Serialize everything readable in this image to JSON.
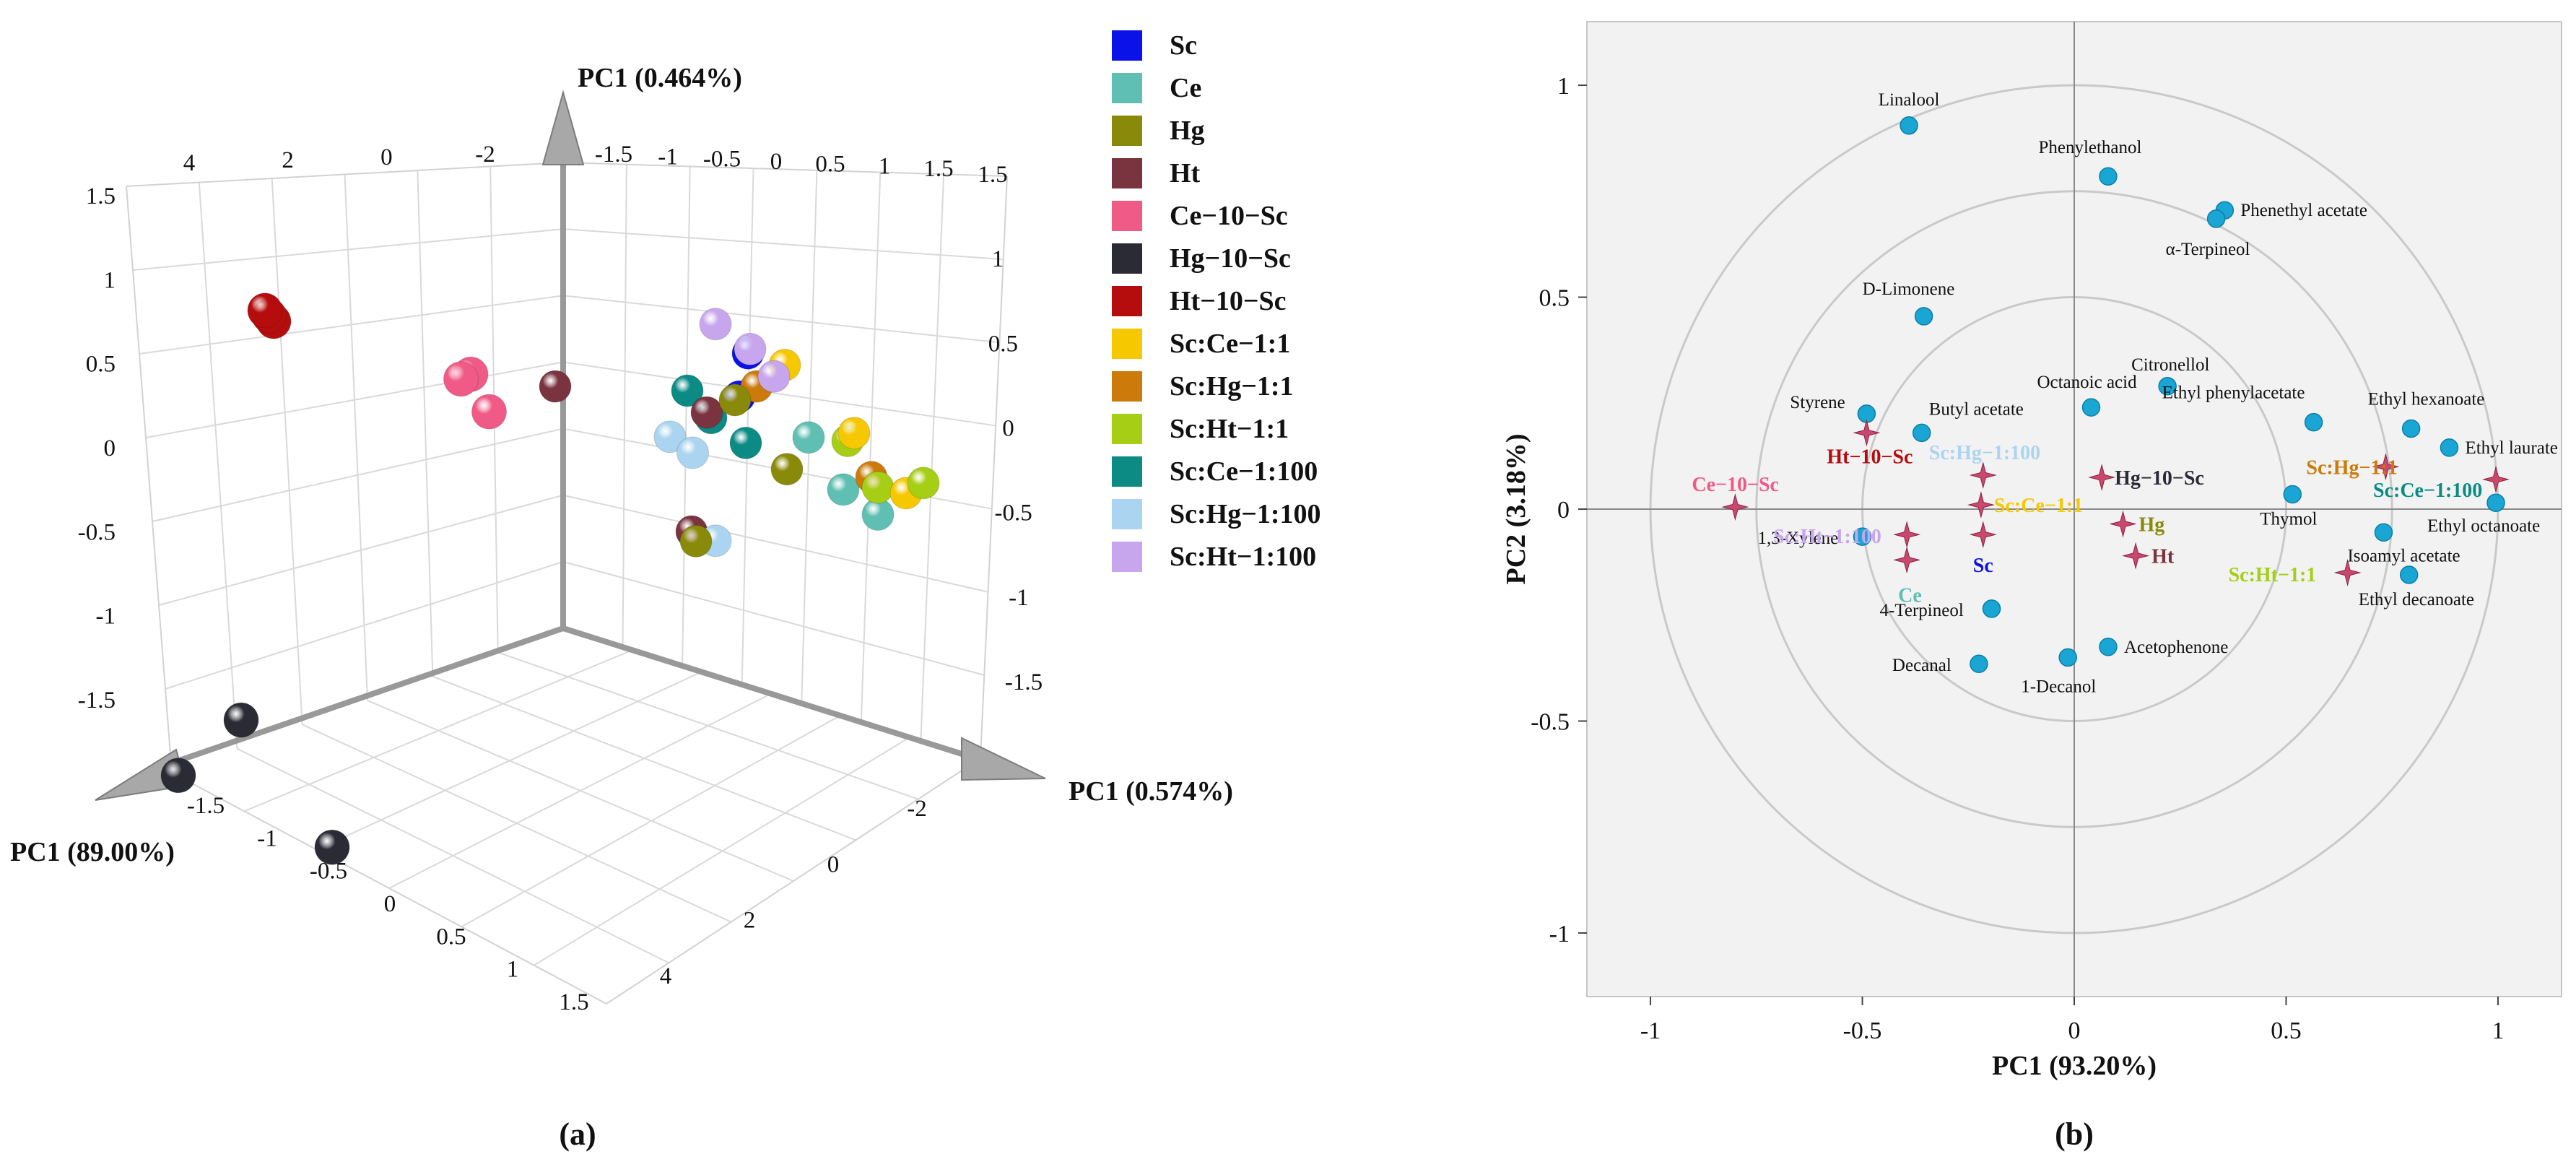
{
  "colors": {
    "Sc": "#0b12e8",
    "Ce": "#5ebfb2",
    "Hg": "#8a8a0a",
    "Ht": "#7a3440",
    "Ce-10-Sc": "#f05a86",
    "Hg-10-Sc": "#2b2b36",
    "Ht-10-Sc": "#b50d0d",
    "Sc:Ce-1:1": "#f6c800",
    "Sc:Hg-1:1": "#cc7a0a",
    "Sc:Ht-1:1": "#a6ce14",
    "Sc:Ce-1:100": "#0c8a84",
    "Sc:Hg-1:100": "#aad4f0",
    "Sc:Ht-1:100": "#c8a6ee",
    "variable_point": "#1aa6d4",
    "sample_star": "#c8486e",
    "plot_bg": "#f2f2f2",
    "circle": "#c8c8c8"
  },
  "chart_data": [
    {
      "type": "scatter",
      "panel_label": "(a)",
      "title": "",
      "dimensions": "3d",
      "axis_labels": {
        "left_axis": "PC1 (89.00%)",
        "right_axis": "PC1 (0.574%)",
        "vertical_axis": "PC1 (0.464%)"
      },
      "left_axis_ticks": [
        "-1.5",
        "-1",
        "-0.5",
        "0",
        "0.5",
        "1",
        "1.5"
      ],
      "right_axis_ticks": [
        "-2",
        "0",
        "2",
        "4"
      ],
      "top_back_left_ticks": [
        "4",
        "2",
        "0",
        "-2"
      ],
      "top_back_right_ticks": [
        "-1.5",
        "-1",
        "-0.5",
        "0",
        "0.5",
        "1",
        "1.5"
      ],
      "left_vertical_ticks": [
        "1.5",
        "1",
        "0.5",
        "0",
        "-0.5",
        "-1",
        "-1.5"
      ],
      "right_vertical_ticks": [
        "1.5",
        "1",
        "0.5",
        "0",
        "-0.5",
        "-1",
        "-1.5"
      ],
      "legend": [
        "Sc",
        "Ce",
        "Hg",
        "Ht",
        "Ce−10−Sc",
        "Hg−10−Sc",
        "Ht−10−Sc",
        "Sc:Ce−1:1",
        "Sc:Hg−1:1",
        "Sc:Ht−1:1",
        "Sc:Ce−1:100",
        "Sc:Hg−1:100",
        "Sc:Ht−1:100"
      ],
      "groups": [
        {
          "name": "Ht-10-Sc",
          "points": [
            [
              -0.95,
              2.6,
              0.9
            ],
            [
              -0.9,
              2.7,
              0.95
            ],
            [
              -0.85,
              2.8,
              1.0
            ]
          ]
        },
        {
          "name": "Ce-10-Sc",
          "points": [
            [
              -0.35,
              1.5,
              0.55
            ],
            [
              -0.3,
              1.65,
              0.55
            ],
            [
              -0.25,
              1.45,
              0.35
            ]
          ]
        },
        {
          "name": "Ht",
          "points": [
            [
              0.05,
              1.2,
              0.5
            ],
            [
              0.3,
              0.1,
              0.25
            ],
            [
              0.1,
              0.0,
              -0.45
            ]
          ]
        },
        {
          "name": "Hg-10-Sc",
          "points": [
            [
              -0.2,
              3.8,
              -1.05
            ],
            [
              -0.6,
              3.9,
              -1.4
            ],
            [
              -0.5,
              2.6,
              -1.95
            ]
          ]
        },
        {
          "name": "Sc",
          "points": [
            [
              0.2,
              -0.4,
              0.5
            ],
            [
              0.3,
              -0.2,
              0.3
            ]
          ]
        },
        {
          "name": "Ce",
          "points": [
            [
              0.5,
              -0.6,
              0.05
            ],
            [
              0.6,
              -0.8,
              -0.25
            ],
            [
              0.7,
              -1.0,
              -0.4
            ]
          ]
        },
        {
          "name": "Hg",
          "points": [
            [
              0.35,
              -0.1,
              0.3
            ],
            [
              0.5,
              -0.4,
              -0.1
            ],
            [
              0.3,
              0.2,
              -0.45
            ]
          ]
        },
        {
          "name": "Sc:Ce-1:1",
          "points": [
            [
              0.4,
              -0.5,
              0.45
            ],
            [
              0.6,
              -0.9,
              0.05
            ],
            [
              0.75,
              -1.2,
              -0.3
            ]
          ]
        },
        {
          "name": "Sc:Hg-1:1",
          "points": [
            [
              0.35,
              -0.3,
              0.35
            ],
            [
              0.65,
              -1.0,
              -0.2
            ]
          ]
        },
        {
          "name": "Sc:Ht-1:1",
          "points": [
            [
              0.55,
              -0.9,
              0.0
            ],
            [
              0.7,
              -1.0,
              -0.25
            ],
            [
              0.8,
              -1.3,
              -0.25
            ]
          ]
        },
        {
          "name": "Sc:Ce-1:100",
          "points": [
            [
              0.15,
              0.1,
              0.35
            ],
            [
              0.25,
              0.0,
              0.2
            ],
            [
              0.35,
              -0.2,
              0.05
            ]
          ]
        },
        {
          "name": "Sc:Hg-1:100",
          "points": [
            [
              0.1,
              0.2,
              0.1
            ],
            [
              0.15,
              0.05,
              0.0
            ],
            [
              0.2,
              -0.1,
              -0.5
            ]
          ]
        },
        {
          "name": "Sc:Ht-1:100",
          "points": [
            [
              0.2,
              -0.1,
              0.7
            ],
            [
              0.3,
              -0.3,
              0.55
            ],
            [
              0.4,
              -0.4,
              0.4
            ]
          ]
        }
      ]
    },
    {
      "type": "scatter",
      "panel_label": "(b)",
      "title": "",
      "xlabel": "PC1 (93.20%)",
      "ylabel": "PC2 (3.18%)",
      "xlim": [
        -1.15,
        1.15
      ],
      "ylim": [
        -1.15,
        1.15
      ],
      "xticks": [
        -1,
        -0.5,
        0,
        0.5,
        1
      ],
      "yticks": [
        -1,
        -0.5,
        0,
        0.5,
        1
      ],
      "xtick_labels": [
        "-1",
        "-0.5",
        "0",
        "0.5",
        "1"
      ],
      "ytick_labels": [
        "1",
        "0.5",
        "0",
        "-0.5",
        "-1"
      ],
      "ytick_label_values": [
        1,
        0.5,
        0,
        -0.5,
        -1
      ],
      "circles_radius": [
        0.5,
        0.75,
        1.0
      ],
      "variables": [
        {
          "label": "Linalool",
          "x": -0.39,
          "y": 0.905
        },
        {
          "label": "Phenylethanol",
          "x": 0.08,
          "y": 0.785
        },
        {
          "label": "Phenethyl acetate",
          "x": 0.355,
          "y": 0.705
        },
        {
          "label": "α-Terpineol",
          "x": 0.335,
          "y": 0.685
        },
        {
          "label": "D-Limonene",
          "x": -0.355,
          "y": 0.455
        },
        {
          "label": "Citronellol",
          "x": 0.22,
          "y": 0.29
        },
        {
          "label": "Octanoic acid",
          "x": 0.04,
          "y": 0.24
        },
        {
          "label": "Ethyl phenylacetate",
          "x": 0.565,
          "y": 0.205
        },
        {
          "label": "Ethyl hexanoate",
          "x": 0.795,
          "y": 0.19
        },
        {
          "label": "Ethyl laurate",
          "x": 0.885,
          "y": 0.145
        },
        {
          "label": "Styrene",
          "x": -0.49,
          "y": 0.225
        },
        {
          "label": "Butyl acetate",
          "x": -0.36,
          "y": 0.18
        },
        {
          "label": "Thymol",
          "x": 0.515,
          "y": 0.035
        },
        {
          "label": "Ethyl octanoate",
          "x": 0.995,
          "y": 0.015
        },
        {
          "label": "Isoamyl acetate",
          "x": 0.73,
          "y": -0.055
        },
        {
          "label": "1,3-Xylene",
          "x": -0.5,
          "y": -0.065
        },
        {
          "label": "Ethyl decanoate",
          "x": 0.79,
          "y": -0.155
        },
        {
          "label": "4-Terpineol",
          "x": -0.195,
          "y": -0.235
        },
        {
          "label": "Acetophenone",
          "x": 0.08,
          "y": -0.325
        },
        {
          "label": "Decanal",
          "x": -0.225,
          "y": -0.365
        },
        {
          "label": "1-Decanol",
          "x": -0.015,
          "y": -0.35
        }
      ],
      "samples": [
        {
          "label": "Ce−10−Sc",
          "key": "Ce-10-Sc",
          "x": -0.8,
          "y": 0.005
        },
        {
          "label": "Ht−10−Sc",
          "key": "Ht-10-Sc",
          "x": -0.49,
          "y": 0.18
        },
        {
          "label": "Sc:Hg−1:100",
          "key": "Sc:Hg-1:100",
          "x": -0.215,
          "y": 0.08
        },
        {
          "label": "Hg−10−Sc",
          "key": "Hg-10-Sc",
          "x": 0.065,
          "y": 0.075
        },
        {
          "label": "Sc:Ce−1:1",
          "key": "Sc:Ce-1:1",
          "x": -0.22,
          "y": 0.01
        },
        {
          "label": "Sc:Ht−1:100",
          "key": "Sc:Ht-1:100",
          "x": -0.395,
          "y": -0.06
        },
        {
          "label": "Ce",
          "key": "Ce",
          "x": -0.395,
          "y": -0.12
        },
        {
          "label": "Sc",
          "key": "Sc",
          "x": -0.215,
          "y": -0.06
        },
        {
          "label": "Hg",
          "key": "Hg",
          "x": 0.115,
          "y": -0.035
        },
        {
          "label": "Ht",
          "key": "Ht",
          "x": 0.145,
          "y": -0.11
        },
        {
          "label": "Sc:Hg−1:1",
          "key": "Sc:Hg-1:1",
          "x": 0.735,
          "y": 0.1
        },
        {
          "label": "Sc:Ce−1:100",
          "key": "Sc:Ce-1:100",
          "x": 0.995,
          "y": 0.07
        },
        {
          "label": "Sc:Ht−1:1",
          "key": "Sc:Ht-1:1",
          "x": 0.645,
          "y": -0.15
        }
      ]
    }
  ]
}
